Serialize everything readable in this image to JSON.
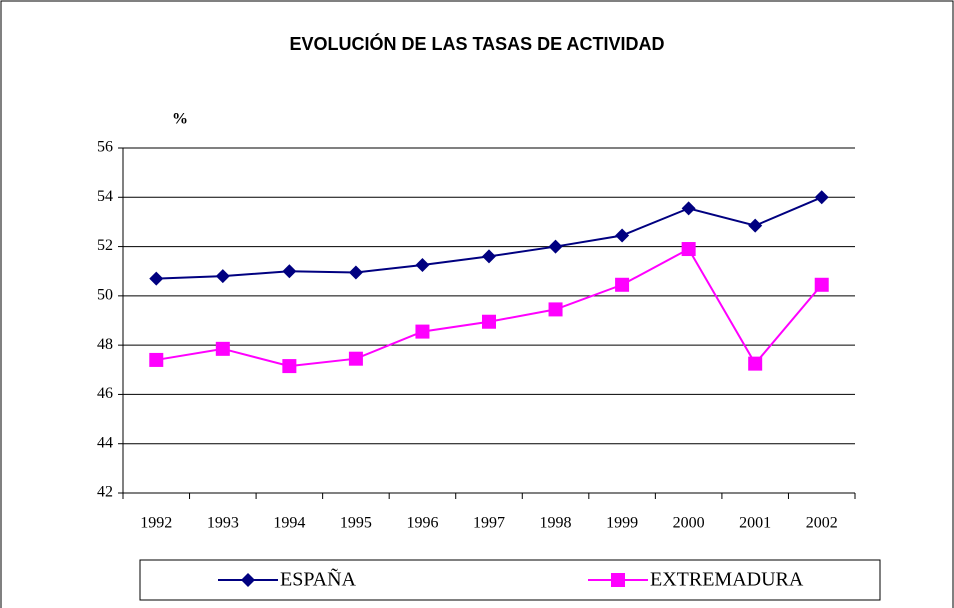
{
  "chart_data": {
    "type": "line",
    "title": "EVOLUCIÓN DE LAS TASAS DE ACTIVIDAD",
    "y_label": "%",
    "categories": [
      "1992",
      "1993",
      "1994",
      "1995",
      "1996",
      "1997",
      "1998",
      "1999",
      "2000",
      "2001",
      "2002"
    ],
    "series": [
      {
        "name": "ESPAÑA",
        "color": "#000080",
        "marker": "diamond",
        "values": [
          50.7,
          50.8,
          51.0,
          50.95,
          51.25,
          51.6,
          52.0,
          52.45,
          53.55,
          52.85,
          54.0
        ]
      },
      {
        "name": "EXTREMADURA",
        "color": "#ff00ff",
        "marker": "square",
        "values": [
          47.4,
          47.85,
          47.15,
          47.45,
          48.55,
          48.95,
          49.45,
          50.45,
          51.9,
          47.25,
          50.45
        ]
      }
    ],
    "ylim": [
      42,
      56
    ],
    "yticks": [
      42,
      44,
      46,
      48,
      50,
      52,
      54,
      56
    ],
    "grid": true,
    "legend": "bottom"
  }
}
